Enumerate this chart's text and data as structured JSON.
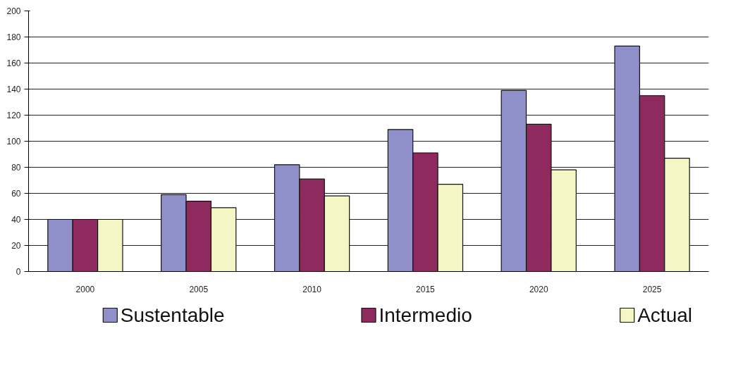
{
  "chart_data": {
    "type": "bar",
    "categories": [
      "2000",
      "2005",
      "2010",
      "2015",
      "2020",
      "2025"
    ],
    "series": [
      {
        "name": "Sustentable",
        "color": "#8f8fca",
        "values": [
          40,
          59,
          82,
          109,
          139,
          173
        ]
      },
      {
        "name": "Intermedio",
        "color": "#8f2a5e",
        "values": [
          40,
          54,
          71,
          91,
          113,
          135
        ]
      },
      {
        "name": "Actual",
        "color": "#f5f5c5",
        "values": [
          40,
          49,
          58,
          67,
          78,
          87
        ]
      }
    ],
    "ylim": [
      0,
      200
    ],
    "yticks": [
      0,
      20,
      40,
      60,
      80,
      100,
      120,
      140,
      160,
      180,
      200
    ],
    "grid": "y",
    "legend": "bottom"
  }
}
